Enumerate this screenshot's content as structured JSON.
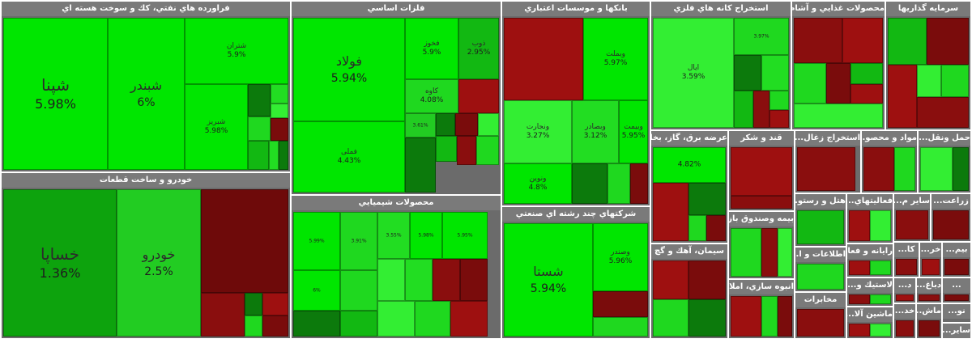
{
  "colors": {
    "bright_green": "#00e600",
    "green": "#1fd81f",
    "light_green": "#33ee33",
    "mid_green": "#12b812",
    "dark_green": "#0c7a0c",
    "dark_red": "#7a0c0c",
    "red": "#9e1010",
    "header_bg": "#7a7a7a"
  },
  "sectors": [
    {
      "title": "فراورده هاي نفتي، كك و سوخت هسته اي",
      "tiles": [
        {
          "name": "شپنا",
          "value": "5.98%",
          "color": "#00e600"
        },
        {
          "name": "شبندر",
          "value": "6%",
          "color": "#00e600"
        },
        {
          "name": "شتران",
          "value": "5.9%",
          "color": "#00e600"
        },
        {
          "name": "شبریز",
          "value": "5.98%",
          "color": "#00e600"
        },
        {
          "name": "",
          "value": "",
          "color": "#0c7a0c"
        },
        {
          "name": "",
          "value": "",
          "color": "#22dd22"
        },
        {
          "name": "",
          "value": "",
          "color": "#1fd81f"
        },
        {
          "name": "",
          "value": "",
          "color": "#33ee33"
        },
        {
          "name": "",
          "value": "",
          "color": "#7a0c0c"
        },
        {
          "name": "",
          "value": "",
          "color": "#12b812"
        },
        {
          "name": "",
          "value": "",
          "color": "#22dd22"
        },
        {
          "name": "",
          "value": "",
          "color": "#0c7a0c"
        }
      ]
    },
    {
      "title": "خودرو و ساخت قطعات",
      "tiles": [
        {
          "name": "خساپا",
          "value": "1.36%",
          "color": "#0da30d"
        },
        {
          "name": "خودرو",
          "value": "2.5%",
          "color": "#22cc22"
        },
        {
          "name": "",
          "value": "",
          "color": "#6e0a0a"
        },
        {
          "name": "",
          "value": "",
          "color": "#8a0e0e"
        },
        {
          "name": "",
          "value": "",
          "color": "#0c7a0c"
        },
        {
          "name": "",
          "value": "",
          "color": "#9e1010"
        },
        {
          "name": "",
          "value": "",
          "color": "#1fd81f"
        },
        {
          "name": "",
          "value": "",
          "color": "#7a0c0c"
        }
      ]
    },
    {
      "title": "فلزات اساسي",
      "tiles": [
        {
          "name": "فولاد",
          "value": "5.94%",
          "color": "#00e600"
        },
        {
          "name": "فملی",
          "value": "4.43%",
          "color": "#00e600"
        },
        {
          "name": "فخوز",
          "value": "5.9%",
          "color": "#00e600"
        },
        {
          "name": "ذوب",
          "value": "2.95%",
          "color": "#12b812"
        },
        {
          "name": "کاوه",
          "value": "4.08%",
          "color": "#1fd81f"
        },
        {
          "name": "",
          "value": "",
          "color": "#9e1010"
        },
        {
          "name": "",
          "value": "3.61%",
          "color": "#22cc22"
        },
        {
          "name": "",
          "value": "",
          "color": "#0c7a0c"
        },
        {
          "name": "",
          "value": "",
          "color": "#7a0c0c"
        },
        {
          "name": "",
          "value": "",
          "color": "#33ee33"
        },
        {
          "name": "",
          "value": "",
          "color": "#12b812"
        },
        {
          "name": "",
          "value": "",
          "color": "#8a0e0e"
        },
        {
          "name": "",
          "value": "",
          "color": "#1fd81f"
        },
        {
          "name": "",
          "value": "",
          "color": "#0c7a0c"
        }
      ]
    },
    {
      "title": "محصولات شيميايي",
      "tiles": [
        {
          "name": "",
          "value": "5.99%",
          "color": "#00e600"
        },
        {
          "name": "",
          "value": "3.91%",
          "color": "#1fd81f"
        },
        {
          "name": "",
          "value": "3.55%",
          "color": "#22dd22"
        },
        {
          "name": "",
          "value": "5.98%",
          "color": "#00e600"
        },
        {
          "name": "",
          "value": "5.95%",
          "color": "#00e600"
        },
        {
          "name": "",
          "value": "6%",
          "color": "#00e600"
        },
        {
          "name": "",
          "value": "",
          "color": "#1fd81f"
        },
        {
          "name": "",
          "value": "",
          "color": "#33ee33"
        },
        {
          "name": "",
          "value": "",
          "color": "#22dd22"
        },
        {
          "name": "",
          "value": "",
          "color": "#8a0e0e"
        },
        {
          "name": "",
          "value": "",
          "color": "#7a0c0c"
        },
        {
          "name": "",
          "value": "",
          "color": "#0c7a0c"
        },
        {
          "name": "",
          "value": "",
          "color": "#12b812"
        },
        {
          "name": "",
          "value": "",
          "color": "#33ee33"
        },
        {
          "name": "",
          "value": "",
          "color": "#1fd81f"
        },
        {
          "name": "",
          "value": "",
          "color": "#9e1010"
        }
      ]
    },
    {
      "title": "بانكها و موسسات اعتباري",
      "tiles": [
        {
          "name": "",
          "value": "",
          "color": "#9e1010"
        },
        {
          "name": "وبملت",
          "value": "5.97%",
          "color": "#00e600"
        },
        {
          "name": "ونجارت",
          "value": "3.27%",
          "color": "#33ee33"
        },
        {
          "name": "وبصادر",
          "value": "3.12%",
          "color": "#22dd22"
        },
        {
          "name": "وبیمت",
          "value": "5.95%",
          "color": "#00e600"
        },
        {
          "name": "ونوین",
          "value": "4.8%",
          "color": "#00e600"
        },
        {
          "name": "",
          "value": "",
          "color": "#0c7a0c"
        },
        {
          "name": "",
          "value": "",
          "color": "#1fd81f"
        },
        {
          "name": "",
          "value": "",
          "color": "#7a0c0c"
        }
      ]
    },
    {
      "title": "شركتهاي چند رشته اي صنعتي",
      "tiles": [
        {
          "name": "شستا",
          "value": "5.94%",
          "color": "#00e600"
        },
        {
          "name": "وصندر",
          "value": "5.96%",
          "color": "#00e600"
        },
        {
          "name": "",
          "value": "",
          "color": "#7a0c0c"
        },
        {
          "name": "",
          "value": "",
          "color": "#1fd81f"
        }
      ]
    },
    {
      "title": "استخراج كانه هاي فلزي",
      "tiles": [
        {
          "name": "ایال",
          "value": "3.59%",
          "color": "#33ee33"
        },
        {
          "name": "",
          "value": "3.97%",
          "color": "#1fd81f"
        },
        {
          "name": "",
          "value": "",
          "color": "#0c7a0c"
        },
        {
          "name": "",
          "value": "",
          "color": "#22dd22"
        },
        {
          "name": "",
          "value": "",
          "color": "#12b812"
        },
        {
          "name": "",
          "value": "",
          "color": "#8a0e0e"
        },
        {
          "name": "",
          "value": "",
          "color": "#1fd81f"
        },
        {
          "name": "",
          "value": "",
          "color": "#9e1010"
        }
      ]
    },
    {
      "title": "محصولات غذايي و آشام...",
      "tiles": [
        {
          "name": "",
          "value": "",
          "color": "#8a0e0e"
        },
        {
          "name": "",
          "value": "",
          "color": "#9e1010"
        },
        {
          "name": "",
          "value": "",
          "color": "#1fd81f"
        },
        {
          "name": "",
          "value": "",
          "color": "#7a0c0c"
        },
        {
          "name": "",
          "value": "",
          "color": "#12b812"
        },
        {
          "name": "",
          "value": "",
          "color": "#9e1010"
        },
        {
          "name": "",
          "value": "",
          "color": "#33ee33"
        }
      ]
    },
    {
      "title": "سرمايه گذاريها",
      "tiles": [
        {
          "name": "",
          "value": "",
          "color": "#12b812"
        },
        {
          "name": "",
          "value": "",
          "color": "#7a0c0c"
        },
        {
          "name": "",
          "value": "",
          "color": "#9e1010"
        },
        {
          "name": "",
          "value": "",
          "color": "#33ee33"
        },
        {
          "name": "",
          "value": "",
          "color": "#1fd81f"
        },
        {
          "name": "",
          "value": "",
          "color": "#8a0e0e"
        }
      ]
    },
    {
      "title": "عرضه برق، گاز، بخا...",
      "tiles": [
        {
          "name": "",
          "value": "4.82%",
          "color": "#00e600"
        },
        {
          "name": "",
          "value": "",
          "color": "#9e1010"
        },
        {
          "name": "",
          "value": "",
          "color": "#0c7a0c"
        },
        {
          "name": "",
          "value": "",
          "color": "#1fd81f"
        },
        {
          "name": "",
          "value": "",
          "color": "#7a0c0c"
        }
      ]
    },
    {
      "title": "قند و شكر",
      "tiles": [
        {
          "name": "",
          "value": "",
          "color": "#9e1010"
        },
        {
          "name": "",
          "value": "",
          "color": "#8a0e0e"
        }
      ]
    },
    {
      "title": "استخراج زغال...",
      "tiles": [
        {
          "name": "",
          "value": "",
          "color": "#8a0e0e"
        }
      ]
    },
    {
      "title": "مواد و محصو...",
      "tiles": [
        {
          "name": "",
          "value": "",
          "color": "#8a0e0e"
        },
        {
          "name": "",
          "value": "",
          "color": "#1fd81f"
        }
      ]
    },
    {
      "title": "حمل ونقل...",
      "tiles": [
        {
          "name": "",
          "value": "",
          "color": "#33ee33"
        },
        {
          "name": "",
          "value": "",
          "color": "#0c7a0c"
        }
      ]
    },
    {
      "title": "سيمان، آهك و گچ",
      "tiles": [
        {
          "name": "",
          "value": "",
          "color": "#9e1010"
        },
        {
          "name": "",
          "value": "",
          "color": "#7a0c0c"
        },
        {
          "name": "",
          "value": "",
          "color": "#1fd81f"
        },
        {
          "name": "",
          "value": "",
          "color": "#0c7a0c"
        }
      ]
    },
    {
      "title": "بيمه وصندوق باز...",
      "tiles": [
        {
          "name": "",
          "value": "",
          "color": "#1fd81f"
        },
        {
          "name": "",
          "value": "",
          "color": "#8a0e0e"
        },
        {
          "name": "",
          "value": "",
          "color": "#33ee33"
        }
      ]
    },
    {
      "title": "انبوه سازي، املا...",
      "tiles": [
        {
          "name": "",
          "value": "",
          "color": "#9e1010"
        },
        {
          "name": "",
          "value": "",
          "color": "#1fd81f"
        },
        {
          "name": "",
          "value": "",
          "color": "#7a0c0c"
        }
      ]
    },
    {
      "title": "هتل و رستو...",
      "tiles": [
        {
          "name": "",
          "value": "",
          "color": "#12b812"
        }
      ]
    },
    {
      "title": "اطلاعات و ا...",
      "tiles": [
        {
          "name": "",
          "value": "",
          "color": "#1fd81f"
        }
      ]
    },
    {
      "title": "مخابرات",
      "tiles": [
        {
          "name": "",
          "value": "",
          "color": "#8a0e0e"
        }
      ]
    },
    {
      "title": "فعاليتهاي...",
      "tiles": [
        {
          "name": "",
          "value": "",
          "color": "#9e1010"
        },
        {
          "name": "",
          "value": "",
          "color": "#33ee33"
        }
      ]
    },
    {
      "title": "ساير م...",
      "tiles": [
        {
          "name": "",
          "value": "",
          "color": "#8a0e0e"
        }
      ]
    },
    {
      "title": "زراعت...",
      "tiles": [
        {
          "name": "",
          "value": "",
          "color": "#7a0c0c"
        }
      ]
    },
    {
      "title": "رايانه و فعا...",
      "tiles": [
        {
          "name": "",
          "value": "",
          "color": "#9e1010"
        },
        {
          "name": "",
          "value": "",
          "color": "#1fd81f"
        }
      ]
    },
    {
      "title": "کا...",
      "tiles": [
        {
          "name": "",
          "value": "",
          "color": "#8a0e0e"
        }
      ]
    },
    {
      "title": "خر...",
      "tiles": [
        {
          "name": "",
          "value": "",
          "color": "#9e1010"
        }
      ]
    },
    {
      "title": "بیم...",
      "tiles": [
        {
          "name": "",
          "value": "",
          "color": "#7a0c0c"
        }
      ]
    },
    {
      "title": "لاستیك و...",
      "tiles": [
        {
          "name": "",
          "value": "",
          "color": "#8a0e0e"
        },
        {
          "name": "",
          "value": "",
          "color": "#1fd81f"
        }
      ]
    },
    {
      "title": "د...",
      "tiles": [
        {
          "name": "",
          "value": "",
          "color": "#9e1010"
        }
      ]
    },
    {
      "title": "دباغ...",
      "tiles": [
        {
          "name": "",
          "value": "",
          "color": "#8a0e0e"
        }
      ]
    },
    {
      "title": "...",
      "tiles": [
        {
          "name": "",
          "value": "",
          "color": "#7a0c0c"
        }
      ]
    },
    {
      "title": "ماشين آلا...",
      "tiles": [
        {
          "name": "",
          "value": "",
          "color": "#9e1010"
        },
        {
          "name": "",
          "value": "",
          "color": "#33ee33"
        }
      ]
    },
    {
      "title": "خد...",
      "tiles": [
        {
          "name": "",
          "value": "",
          "color": "#8a0e0e"
        }
      ]
    },
    {
      "title": "ماش...",
      "tiles": [
        {
          "name": "",
          "value": "",
          "color": "#7a0c0c"
        }
      ]
    },
    {
      "title": "نو...",
      "tiles": [
        {
          "name": "",
          "value": "",
          "color": "#9e1010"
        }
      ]
    },
    {
      "title": "ساير...",
      "tiles": [
        {
          "name": "",
          "value": "",
          "color": "#8a0e0e"
        }
      ]
    }
  ]
}
